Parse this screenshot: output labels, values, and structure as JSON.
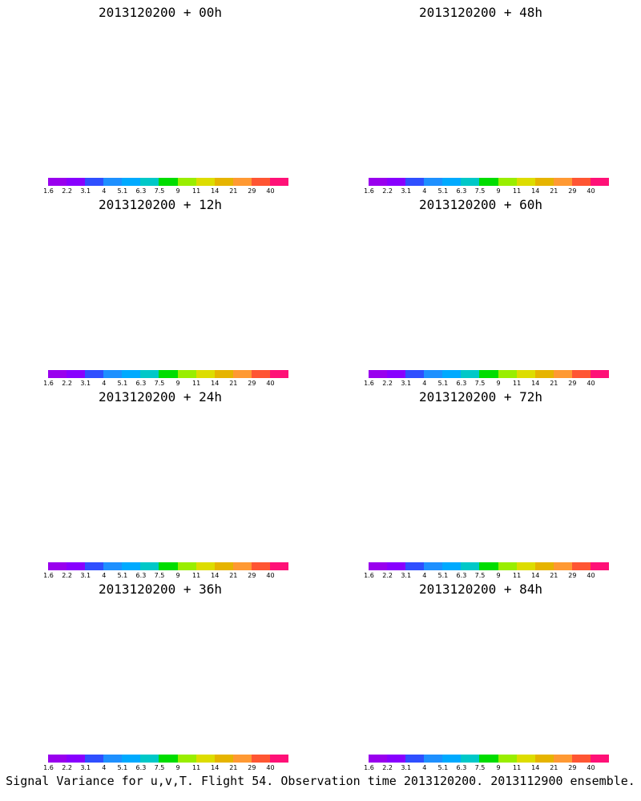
{
  "panels": [
    {
      "title": "2013120200 + 00h",
      "lead_hours": 0
    },
    {
      "title": "2013120200 + 48h",
      "lead_hours": 48
    },
    {
      "title": "2013120200 + 12h",
      "lead_hours": 12
    },
    {
      "title": "2013120200 + 60h",
      "lead_hours": 60
    },
    {
      "title": "2013120200 + 24h",
      "lead_hours": 24
    },
    {
      "title": "2013120200 + 72h",
      "lead_hours": 72
    },
    {
      "title": "2013120200 + 36h",
      "lead_hours": 36
    },
    {
      "title": "2013120200 + 84h",
      "lead_hours": 84
    }
  ],
  "colorbar": {
    "labels": [
      "1.6",
      "2.2",
      "3.1",
      "4",
      "5.1",
      "6.3",
      "7.5",
      "9",
      "11",
      "14",
      "21",
      "29",
      "40"
    ],
    "colors": [
      "#9900ee",
      "#8800ff",
      "#2f4fff",
      "#1e90ff",
      "#00aaff",
      "#00c8c8",
      "#00dd00",
      "#99ee00",
      "#dddd00",
      "#e6b400",
      "#ff9933",
      "#ff5533",
      "#ff1177"
    ]
  },
  "footer": "Signal Variance for u,v,T. Flight 54. Observation time 2013120200. 2013112900 ensemble."
}
